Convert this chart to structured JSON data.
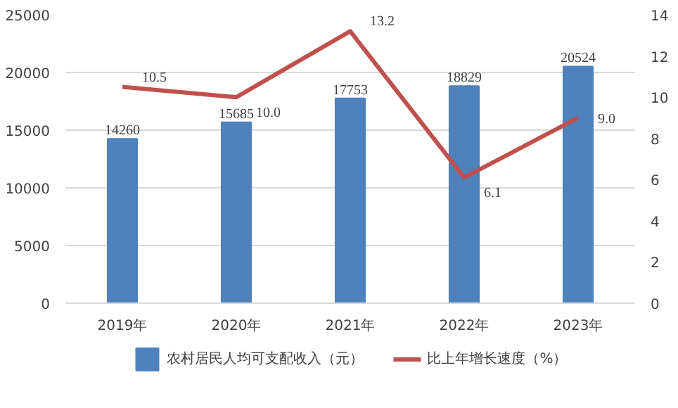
{
  "chart_data": {
    "type": "bar",
    "categories": [
      "2019年",
      "2020年",
      "2021年",
      "2022年",
      "2023年"
    ],
    "series": [
      {
        "name": "农村居民人均可支配收入（元）",
        "type": "bar",
        "color": "#4f81bd",
        "values": [
          14260,
          15685,
          17753,
          18829,
          20524
        ]
      },
      {
        "name": "比上年增长速度（%）",
        "type": "line",
        "axis": "y2",
        "color": "#c0504d",
        "values": [
          10.5,
          10.0,
          13.2,
          6.1,
          9.0
        ],
        "value_labels": [
          "10.5",
          "10.0",
          "13.2",
          "6.1",
          "9.0"
        ]
      }
    ],
    "ylim": [
      0,
      25000
    ],
    "yticks": [
      0,
      5000,
      10000,
      15000,
      20000,
      25000
    ],
    "y2lim": [
      0,
      14
    ],
    "y2ticks": [
      0,
      2,
      4,
      6,
      8,
      10,
      12,
      14
    ],
    "grid": "y",
    "legend": "bottom",
    "data_labels": true,
    "marker": "none"
  }
}
